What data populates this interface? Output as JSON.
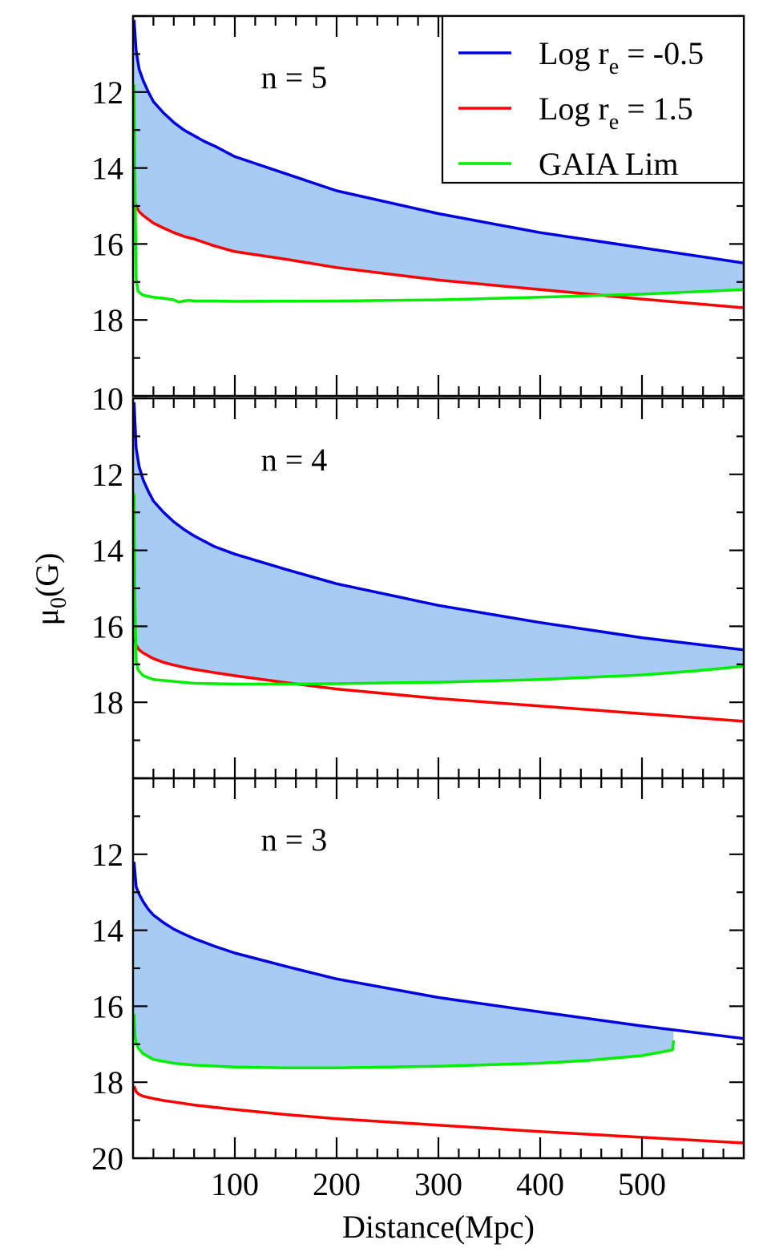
{
  "chart_data": [
    {
      "type": "line",
      "panel_label": "n = 5",
      "ylim": [
        20,
        10
      ],
      "xlim": [
        0,
        600
      ],
      "y_ticks": [
        "12",
        "14",
        "16",
        "18"
      ],
      "series": [
        {
          "name": "Log r_e = -0.5",
          "color": "#0000e0",
          "x": [
            1,
            3,
            6,
            10,
            15,
            20,
            30,
            40,
            50,
            60,
            70,
            80,
            100,
            150,
            200,
            300,
            400,
            500,
            600
          ],
          "y": [
            10.1,
            10.9,
            11.4,
            11.7,
            12.0,
            12.25,
            12.55,
            12.8,
            13.0,
            13.15,
            13.3,
            13.42,
            13.7,
            14.15,
            14.6,
            15.2,
            15.7,
            16.1,
            16.5
          ]
        },
        {
          "name": "Log r_e =  1.5",
          "color": "#ff0000",
          "x": [
            1,
            3,
            6,
            10,
            15,
            20,
            30,
            40,
            50,
            60,
            80,
            100,
            150,
            200,
            300,
            400,
            500,
            600
          ],
          "y": [
            14.8,
            15.0,
            15.15,
            15.25,
            15.35,
            15.45,
            15.58,
            15.7,
            15.8,
            15.87,
            16.05,
            16.2,
            16.4,
            16.62,
            16.95,
            17.2,
            17.45,
            17.68
          ]
        },
        {
          "name": "GAIA Lim",
          "color": "#00ee00",
          "x": [
            1,
            2,
            3,
            5,
            10,
            20,
            30,
            40,
            45,
            50,
            55,
            60,
            80,
            100,
            200,
            300,
            400,
            500,
            600
          ],
          "y": [
            11.8,
            14.5,
            16.9,
            17.25,
            17.35,
            17.4,
            17.43,
            17.47,
            17.53,
            17.5,
            17.48,
            17.5,
            17.5,
            17.51,
            17.5,
            17.47,
            17.4,
            17.32,
            17.2
          ]
        }
      ],
      "legend": {
        "placement": "top-right",
        "entries": [
          {
            "color": "#0000e0",
            "main": "Log r",
            "sub": "e",
            "tail": " = -0.5"
          },
          {
            "color": "#ff0000",
            "main": "Log r",
            "sub": "e",
            "tail": " =  1.5"
          },
          {
            "color": "#00ee00",
            "main": "GAIA Lim",
            "sub": "",
            "tail": ""
          }
        ]
      }
    },
    {
      "type": "line",
      "panel_label": "n = 4",
      "ylim": [
        20,
        10
      ],
      "xlim": [
        0,
        600
      ],
      "y_ticks": [
        "10",
        "12",
        "14",
        "16",
        "18"
      ],
      "series": [
        {
          "name": "Log r_e = -0.5",
          "color": "#0000e0",
          "x": [
            1,
            3,
            6,
            10,
            15,
            20,
            30,
            40,
            50,
            60,
            80,
            100,
            150,
            200,
            300,
            400,
            500,
            600
          ],
          "y": [
            10.1,
            11.3,
            11.8,
            12.15,
            12.45,
            12.7,
            13.0,
            13.25,
            13.45,
            13.62,
            13.9,
            14.1,
            14.5,
            14.88,
            15.45,
            15.9,
            16.3,
            16.62
          ]
        },
        {
          "name": "Log r_e =  1.5",
          "color": "#ff0000",
          "x": [
            1,
            3,
            6,
            10,
            20,
            30,
            40,
            50,
            60,
            80,
            100,
            150,
            200,
            300,
            400,
            500,
            600
          ],
          "y": [
            16.3,
            16.5,
            16.62,
            16.7,
            16.85,
            16.95,
            17.02,
            17.08,
            17.13,
            17.22,
            17.3,
            17.48,
            17.65,
            17.9,
            18.1,
            18.3,
            18.5
          ]
        },
        {
          "name": "GAIA Lim",
          "color": "#00ee00",
          "x": [
            1,
            2,
            3,
            5,
            10,
            20,
            40,
            60,
            100,
            150,
            200,
            300,
            400,
            500,
            550,
            600
          ],
          "y": [
            12.5,
            15.5,
            16.9,
            17.15,
            17.3,
            17.4,
            17.45,
            17.5,
            17.52,
            17.52,
            17.51,
            17.47,
            17.4,
            17.28,
            17.18,
            17.05
          ]
        }
      ]
    },
    {
      "type": "line",
      "panel_label": "n = 3",
      "ylim": [
        20,
        10
      ],
      "xlim": [
        0,
        600
      ],
      "y_ticks": [
        "12",
        "14",
        "16",
        "18",
        "20"
      ],
      "x_ticks": [
        "100",
        "200",
        "300",
        "400",
        "500"
      ],
      "xlabel": "Distance(Mpc)",
      "series": [
        {
          "name": "Log r_e = -0.5",
          "color": "#0000e0",
          "x": [
            1,
            3,
            6,
            10,
            15,
            20,
            30,
            40,
            50,
            60,
            80,
            100,
            150,
            200,
            300,
            400,
            500,
            600
          ],
          "y": [
            12.2,
            12.85,
            13.05,
            13.25,
            13.45,
            13.6,
            13.8,
            13.97,
            14.1,
            14.22,
            14.42,
            14.6,
            14.95,
            15.28,
            15.77,
            16.15,
            16.52,
            16.85
          ]
        },
        {
          "name": "Log r_e =  1.5",
          "color": "#ff0000",
          "x": [
            1,
            3,
            6,
            10,
            20,
            30,
            40,
            60,
            80,
            100,
            150,
            200,
            300,
            400,
            500,
            600
          ],
          "y": [
            18.1,
            18.25,
            18.32,
            18.37,
            18.43,
            18.48,
            18.52,
            18.6,
            18.66,
            18.72,
            18.85,
            18.96,
            19.13,
            19.3,
            19.45,
            19.6
          ]
        },
        {
          "name": "GAIA Lim",
          "color": "#00ee00",
          "x": [
            1,
            2,
            3,
            5,
            10,
            20,
            40,
            60,
            100,
            150,
            200,
            300,
            400,
            450,
            500,
            520,
            530,
            531
          ],
          "y": [
            16.2,
            16.8,
            16.95,
            17.1,
            17.25,
            17.4,
            17.5,
            17.55,
            17.6,
            17.62,
            17.62,
            17.58,
            17.5,
            17.42,
            17.3,
            17.2,
            17.15,
            16.9
          ]
        }
      ]
    }
  ],
  "ylabel": {
    "main": "μ",
    "sub": "0",
    "tail": "(G)"
  }
}
